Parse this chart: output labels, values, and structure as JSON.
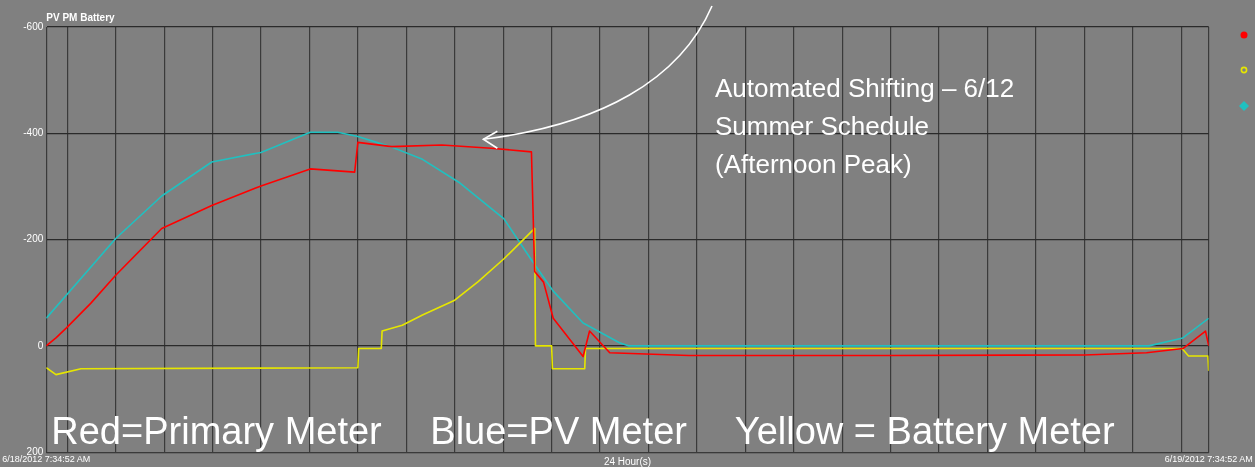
{
  "chart_data": {
    "type": "line",
    "title": "PV PM Battery",
    "xlabel": "24 Hour(s)",
    "annotations": [
      "Automated Shifting – 6/12\nSummer Schedule\n(Afternoon Peak)",
      "Red=Primary Meter   Blue=PV Meter   Yellow = Battery Meter"
    ],
    "series": [
      {
        "color": "#ff0000",
        "x": [
          "2012-06-18T07:34",
          "2012-06-18T07:46",
          "2012-06-18T07:59",
          "2012-06-18T08:29",
          "2012-06-18T09:00",
          "2012-06-18T09:57",
          "2012-06-18T10:59",
          "2012-06-18T12:00",
          "2012-06-18T13:01",
          "2012-06-18T13:56",
          "2012-06-18T14:00",
          "2012-06-18T14:42",
          "2012-06-18T15:44",
          "2012-06-18T16:45",
          "2012-06-18T17:35",
          "2012-06-18T17:39",
          "2012-06-18T17:50",
          "2012-06-18T18:02",
          "2012-06-18T18:39",
          "2012-06-18T18:47",
          "2012-06-18T19:12",
          "2012-06-18T20:50",
          "2012-06-19T00:55",
          "2012-06-19T05:00",
          "2012-06-19T06:17",
          "2012-06-19T07:02",
          "2012-06-19T07:30",
          "2012-06-19T07:34"
        ],
        "values": [
          0,
          -15,
          -34,
          -80,
          -133,
          -221,
          -264,
          -301,
          -333,
          -327,
          -383,
          -375,
          -378,
          -372,
          -365,
          -140,
          -120,
          -52,
          20,
          -28,
          13,
          18,
          18,
          17,
          13,
          5,
          -28,
          0
        ]
      },
      {
        "color": "#e6e600",
        "x": [
          "2012-06-18T07:34",
          "2012-06-18T07:46",
          "2012-06-18T08:17",
          "2012-06-18T14:00",
          "2012-06-18T14:01",
          "2012-06-18T14:29",
          "2012-06-18T14:30",
          "2012-06-18T14:55",
          "2012-06-18T15:20",
          "2012-06-18T16:00",
          "2012-06-18T16:29",
          "2012-06-18T17:01",
          "2012-06-18T17:39",
          "2012-06-18T17:40",
          "2012-06-18T18:00",
          "2012-06-18T18:01",
          "2012-06-18T18:41",
          "2012-06-18T18:42",
          "2012-06-19T07:01",
          "2012-06-19T07:09",
          "2012-06-19T07:33",
          "2012-06-19T07:34"
        ],
        "values": [
          41,
          54,
          43,
          41,
          5,
          5,
          -28,
          -39,
          -58,
          -86,
          -121,
          -164,
          -221,
          0,
          0,
          43,
          43,
          5,
          5,
          19,
          19,
          47
        ]
      },
      {
        "color": "#20c0c0",
        "x": [
          "2012-06-18T07:34",
          "2012-06-18T09:00",
          "2012-06-18T09:57",
          "2012-06-18T10:59",
          "2012-06-18T12:00",
          "2012-06-18T13:01",
          "2012-06-18T13:35",
          "2012-06-18T14:00",
          "2012-06-18T14:42",
          "2012-06-18T15:20",
          "2012-06-18T16:05",
          "2012-06-18T17:01",
          "2012-06-18T17:34",
          "2012-06-18T18:02",
          "2012-06-18T18:39",
          "2012-06-18T19:24",
          "2012-06-18T19:36",
          "2012-06-19T06:20",
          "2012-06-19T07:02",
          "2012-06-19T07:34"
        ],
        "values": [
          -52,
          -202,
          -282,
          -346,
          -364,
          -402,
          -402,
          -394,
          -374,
          -351,
          -308,
          -239,
          -164,
          -103,
          -43,
          -6,
          0,
          0,
          -15,
          -52
        ]
      }
    ],
    "xlim": [
      "2012-06-18T07:34",
      "2012-06-19T07:34"
    ],
    "xticks": [
      {
        "value": "2012-06-18T07:34",
        "label": "6/18/2012 7:34:52 AM"
      },
      {
        "value": "2012-06-18T08:00",
        "label": null
      },
      {
        "value": "2012-06-18T09:00",
        "label": null
      },
      {
        "value": "2012-06-18T10:00",
        "label": null
      },
      {
        "value": "2012-06-18T11:00",
        "label": null
      },
      {
        "value": "2012-06-18T12:00",
        "label": null
      },
      {
        "value": "2012-06-18T13:00",
        "label": null
      },
      {
        "value": "2012-06-18T14:00",
        "label": null
      },
      {
        "value": "2012-06-18T15:00",
        "label": null
      },
      {
        "value": "2012-06-18T16:00",
        "label": null
      },
      {
        "value": "2012-06-18T17:00",
        "label": null
      },
      {
        "value": "2012-06-18T18:00",
        "label": null
      },
      {
        "value": "2012-06-18T19:00",
        "label": null
      },
      {
        "value": "2012-06-18T20:00",
        "label": null
      },
      {
        "value": "2012-06-18T21:00",
        "label": null
      },
      {
        "value": "2012-06-18T22:00",
        "label": null
      },
      {
        "value": "2012-06-18T23:00",
        "label": null
      },
      {
        "value": "2012-06-19T00:00",
        "label": null
      },
      {
        "value": "2012-06-19T01:00",
        "label": null
      },
      {
        "value": "2012-06-19T02:00",
        "label": null
      },
      {
        "value": "2012-06-19T03:00",
        "label": null
      },
      {
        "value": "2012-06-19T04:00",
        "label": null
      },
      {
        "value": "2012-06-19T05:00",
        "label": null
      },
      {
        "value": "2012-06-19T06:00",
        "label": null
      },
      {
        "value": "2012-06-19T07:00",
        "label": null
      },
      {
        "value": "2012-06-19T07:34",
        "label": "6/19/2012 7:34:52 AM"
      }
    ],
    "ylim": [
      200,
      -600
    ],
    "yticks": [
      -600,
      -400,
      -200,
      0,
      200
    ],
    "grid": true,
    "line_style": "solid"
  }
}
